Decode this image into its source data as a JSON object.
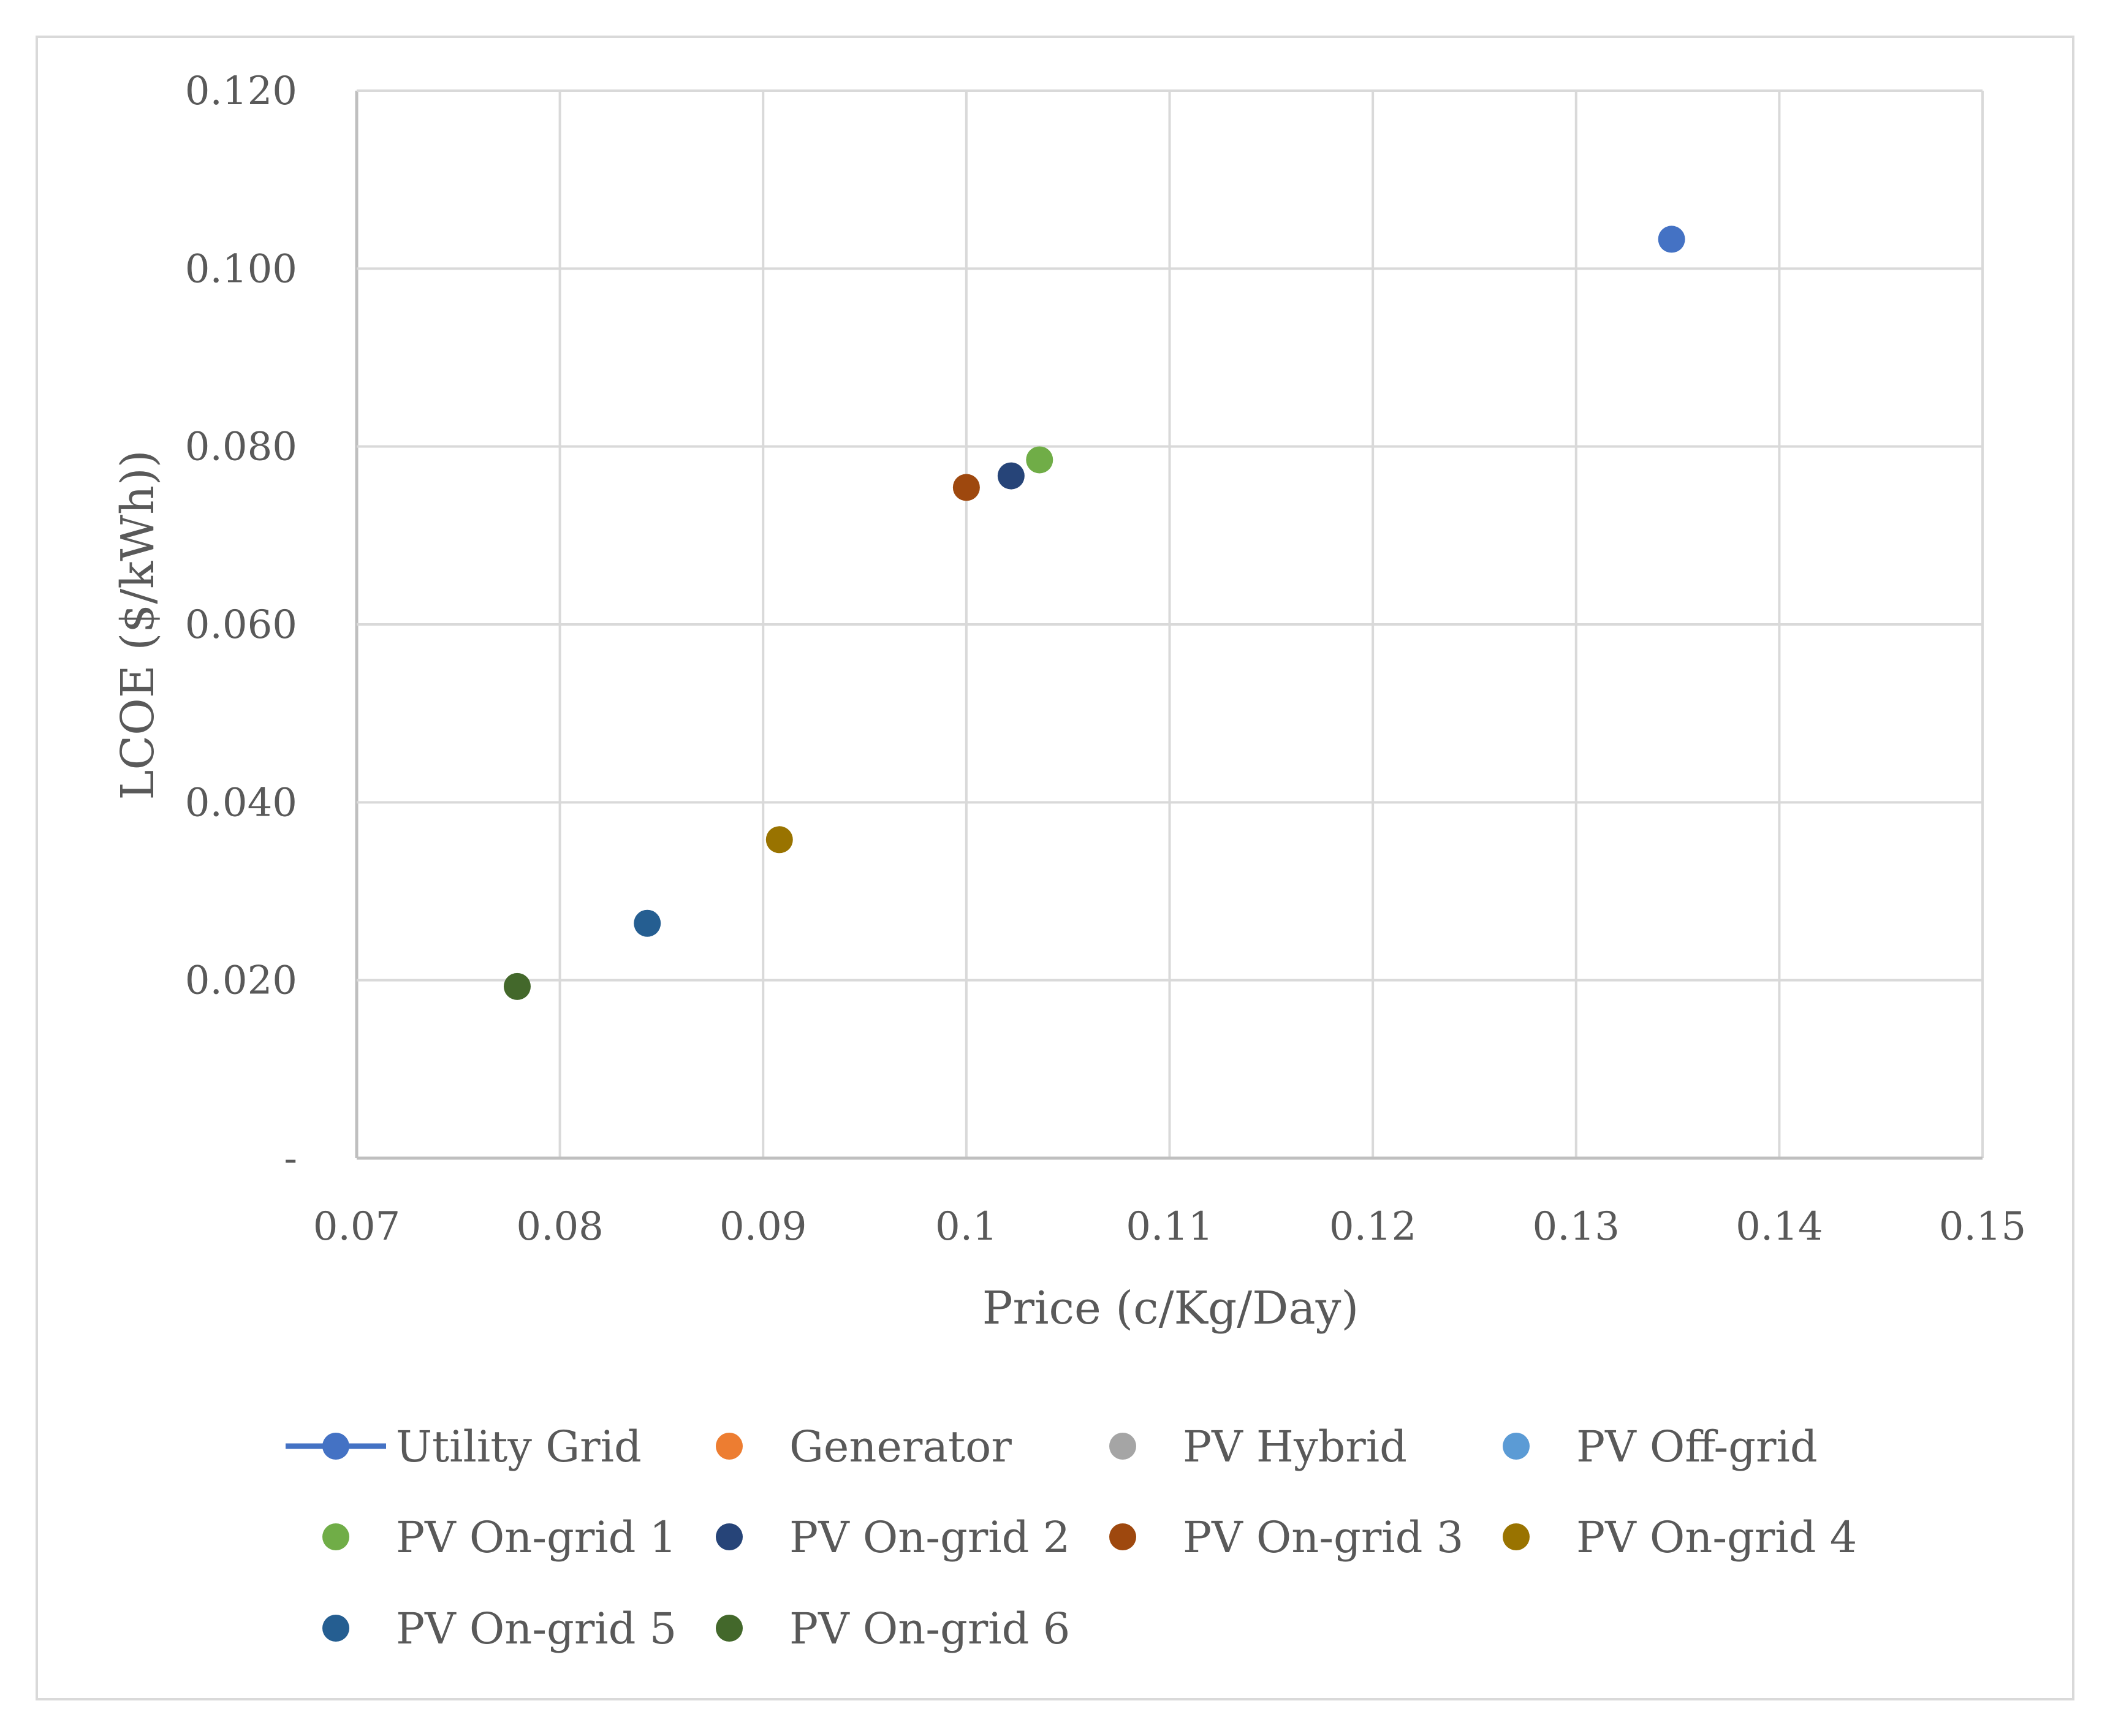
{
  "chart_data": {
    "type": "scatter",
    "title": "",
    "xlabel": "Price (c/Kg/Day)",
    "ylabel": "LCOE ($/kWh))",
    "xlim": [
      0.07,
      0.15
    ],
    "ylim": [
      0,
      0.12
    ],
    "x_ticks": [
      0.07,
      0.08,
      0.09,
      0.1,
      0.11,
      0.12,
      0.13,
      0.14,
      0.15
    ],
    "x_tick_labels": [
      "0.07",
      "0.08",
      "0.09",
      "0.1",
      "0.11",
      "0.12",
      "0.13",
      "0.14",
      "0.15"
    ],
    "y_ticks": [
      0,
      0.02,
      0.04,
      0.06,
      0.08,
      0.1,
      0.12
    ],
    "y_tick_labels": [
      "-",
      "0.020",
      "0.040",
      "0.060",
      "0.080",
      "0.100",
      "0.120"
    ],
    "grid": true,
    "legend_position": "bottom",
    "series": [
      {
        "name": "Utility Grid",
        "color": "#4472C4",
        "marker": "line-marker",
        "points": [
          [
            0.1347,
            0.1033
          ]
        ]
      },
      {
        "name": "Generator",
        "color": "#ED7D31",
        "points": []
      },
      {
        "name": "PV Hybrid",
        "color": "#A5A5A5",
        "points": []
      },
      {
        "name": "PV Off-grid",
        "color": "#5B9BD5",
        "points": []
      },
      {
        "name": "PV On-grid 1",
        "color": "#70AD47",
        "points": [
          [
            0.1036,
            0.0785
          ]
        ]
      },
      {
        "name": "PV On-grid 2",
        "color": "#264478",
        "points": [
          [
            0.1022,
            0.0767
          ]
        ]
      },
      {
        "name": "PV On-grid 3",
        "color": "#9E480E",
        "points": [
          [
            0.1,
            0.0754
          ]
        ]
      },
      {
        "name": "PV On-grid 4",
        "color": "#997300",
        "points": [
          [
            0.0908,
            0.0358
          ]
        ]
      },
      {
        "name": "PV On-grid 5",
        "color": "#255E91",
        "points": [
          [
            0.0843,
            0.0264
          ]
        ]
      },
      {
        "name": "PV On-grid 6",
        "color": "#43682B",
        "points": [
          [
            0.0779,
            0.0193
          ]
        ]
      }
    ]
  }
}
